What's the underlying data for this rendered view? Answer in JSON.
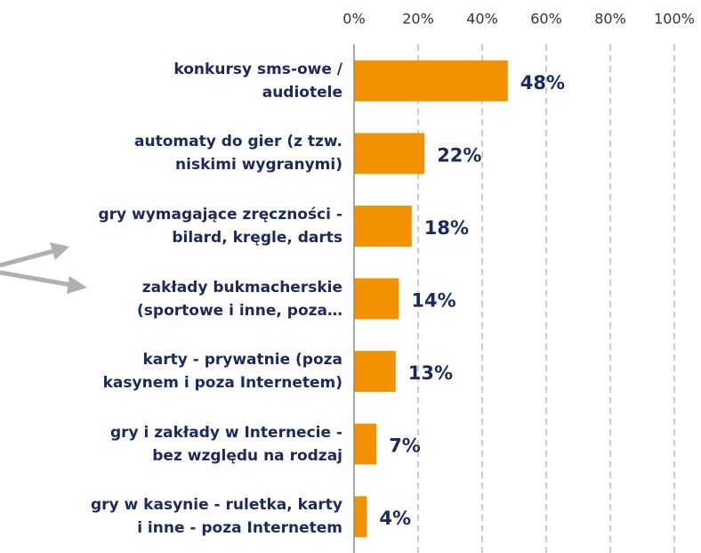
{
  "chart_data": {
    "type": "barh",
    "categories": [
      "konkursy sms-owe /\naudiotele",
      "automaty do gier (z tzw.\nniskimi wygranymi)",
      "gry wymagające zręczności -\nbilard, kręgle, darts",
      "zakłady bukmacherskie\n(sportowe i inne, poza…",
      "karty - prywatnie (poza\nkasynem i poza Internetem)",
      "gry i zakłady w Internecie -\nbez względu na rodzaj",
      "gry w kasynie - ruletka, karty\ni inne - poza Internetem"
    ],
    "values": [
      48,
      22,
      18,
      14,
      13,
      7,
      4
    ],
    "value_labels": [
      "48%",
      "22%",
      "18%",
      "14%",
      "13%",
      "7%",
      "4%"
    ],
    "color": "#f39200",
    "xlim": [
      0,
      100
    ],
    "xticks": [
      {
        "value": 0,
        "label": "0%"
      },
      {
        "value": 20,
        "label": "20%"
      },
      {
        "value": 40,
        "label": "40%"
      },
      {
        "value": 60,
        "label": "60%"
      },
      {
        "value": 80,
        "label": "80%"
      },
      {
        "value": 100,
        "label": "100%"
      }
    ],
    "grid": true
  }
}
